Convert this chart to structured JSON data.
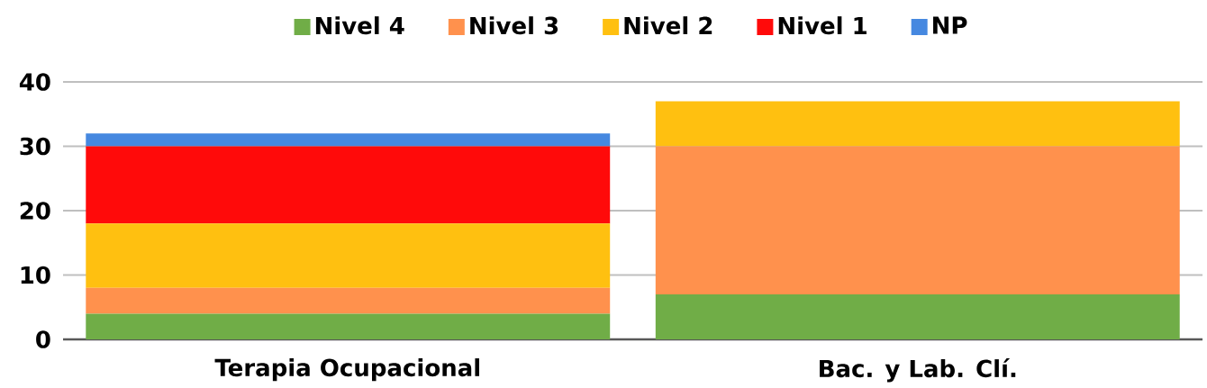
{
  "chart_data": {
    "type": "bar",
    "stacked": true,
    "categories": [
      "Terapia Ocupacional",
      "Bac. y Lab. Clí."
    ],
    "series": [
      {
        "name": "Nivel 4",
        "color": "#70ad47",
        "values": [
          4,
          7
        ]
      },
      {
        "name": "Nivel 3",
        "color": "#ff914d",
        "values": [
          4,
          23
        ]
      },
      {
        "name": "Nivel 2",
        "color": "#ffc010",
        "values": [
          10,
          7
        ]
      },
      {
        "name": "Nivel 1",
        "color": "#ff0a0a",
        "values": [
          12,
          0
        ]
      },
      {
        "name": "NP",
        "color": "#4688e0",
        "values": [
          2,
          0
        ]
      }
    ],
    "ylim": [
      0,
      40
    ],
    "yticks": [
      0,
      10,
      20,
      30,
      40
    ],
    "grid": "y",
    "legend": "top"
  }
}
